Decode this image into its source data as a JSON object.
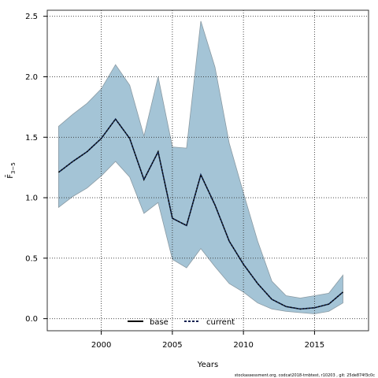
{
  "chart_data": {
    "type": "area",
    "xlabel": "Years",
    "ylabel": "F̄",
    "ylabel_sub": "3−5",
    "xlim": [
      1996.2,
      2018.8
    ],
    "ylim": [
      -0.1,
      2.55
    ],
    "x_ticks": [
      2000,
      2005,
      2010,
      2015
    ],
    "x_tick_labels": [
      "2000",
      "2005",
      "2010",
      "2015"
    ],
    "y_ticks": [
      0.0,
      0.5,
      1.0,
      1.5,
      2.0,
      2.5
    ],
    "y_tick_labels": [
      "0.0",
      "0.5",
      "1.0",
      "1.5",
      "2.0",
      "2.5"
    ],
    "grid": true,
    "grid_style": "dotted",
    "legend_position": "bottom-center",
    "x": [
      1997,
      1998,
      1999,
      2000,
      2001,
      2002,
      2003,
      2004,
      2005,
      2006,
      2007,
      2008,
      2009,
      2010,
      2011,
      2012,
      2013,
      2014,
      2015,
      2016,
      2017
    ],
    "band": {
      "upper": [
        1.59,
        1.69,
        1.78,
        1.9,
        2.1,
        1.93,
        1.51,
        2.0,
        1.42,
        1.41,
        2.46,
        2.08,
        1.45,
        1.04,
        0.64,
        0.31,
        0.19,
        0.17,
        0.19,
        0.21,
        0.36
      ],
      "lower": [
        0.92,
        1.01,
        1.08,
        1.18,
        1.3,
        1.17,
        0.87,
        0.96,
        0.49,
        0.42,
        0.58,
        0.43,
        0.29,
        0.22,
        0.13,
        0.08,
        0.06,
        0.05,
        0.04,
        0.06,
        0.13
      ]
    },
    "series": [
      {
        "name": "base",
        "values": [
          1.21,
          1.3,
          1.38,
          1.49,
          1.65,
          1.49,
          1.15,
          1.38,
          0.83,
          0.77,
          1.19,
          0.94,
          0.64,
          0.45,
          0.29,
          0.16,
          0.1,
          0.08,
          0.09,
          0.12,
          0.22
        ]
      },
      {
        "name": "current",
        "values": [
          1.21,
          1.3,
          1.38,
          1.49,
          1.65,
          1.49,
          1.15,
          1.38,
          0.83,
          0.77,
          1.19,
          0.94,
          0.64,
          0.45,
          0.29,
          0.16,
          0.1,
          0.08,
          0.09,
          0.12,
          0.22
        ]
      }
    ],
    "colors": {
      "band_fill": "#a4c4d6",
      "band_edge": "#8a9aa3",
      "base": "#000000",
      "current": "#0a1f4f",
      "grid": "#333333",
      "frame": "#333333"
    },
    "footer": "stockassessment.org, codcat2018-tmbtest, r10203 , git: 25de874f3c0c"
  }
}
